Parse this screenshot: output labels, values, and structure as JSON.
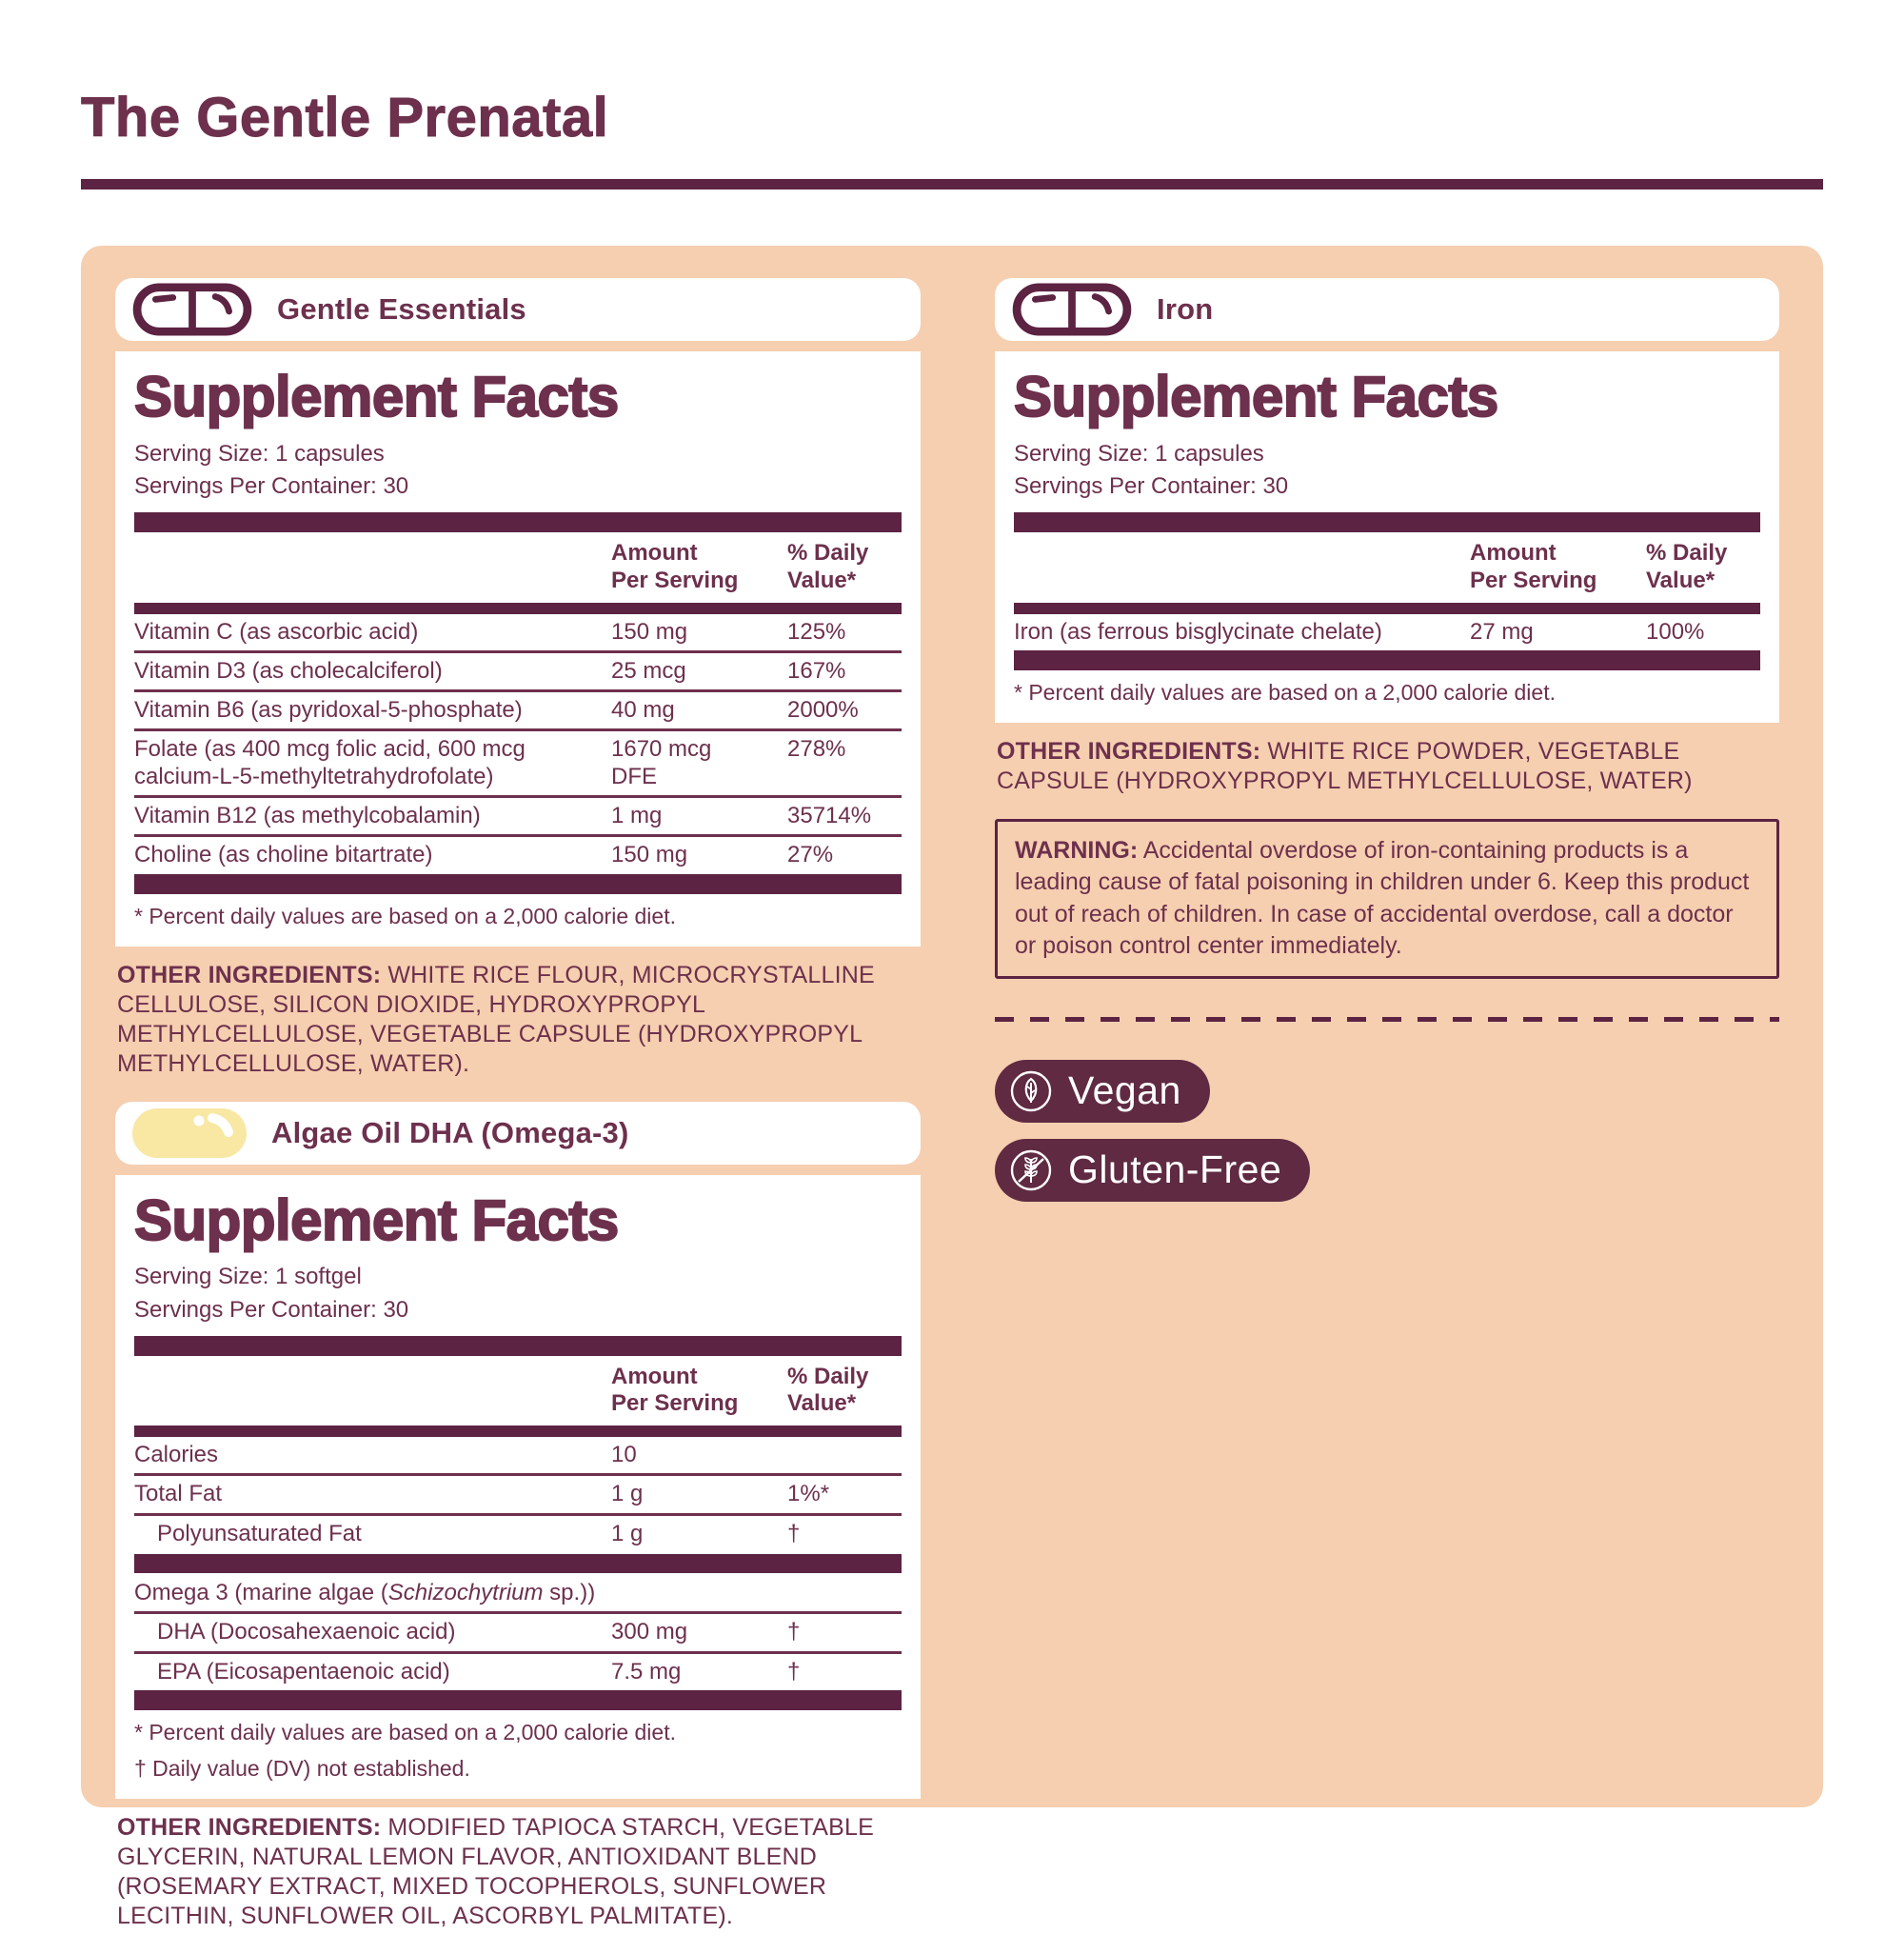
{
  "title": "The Gentle Prenatal",
  "colors": {
    "maroon_text": "#6d304d",
    "maroon_dark": "#5c2342",
    "peach_background": "#f5cfb0",
    "card_white": "#ffffff",
    "softgel_yellow": "#f8e8a4",
    "badge_background": "#5f2a42",
    "badge_text": "#ffffff"
  },
  "sections": {
    "gentle_essentials": {
      "header": {
        "label": "Gentle Essentials",
        "icon": "capsule-icon"
      },
      "facts": {
        "title": "Supplement Facts",
        "serving_size": "Serving Size: 1 capsules",
        "servings_per_container": "Servings Per Container: 30",
        "amount_header_line1": "Amount",
        "amount_header_line2": "Per Serving",
        "dv_header_line1": "% Daily",
        "dv_header_line2": "Value*",
        "rows": [
          {
            "name": "Vitamin C (as ascorbic acid)",
            "amount": "150 mg",
            "dv": "125%"
          },
          {
            "name": "Vitamin D3 (as cholecalciferol)",
            "amount": "25 mcg",
            "dv": "167%"
          },
          {
            "name": "Vitamin B6 (as pyridoxal-5-phosphate)",
            "amount": "40 mg",
            "dv": "2000%"
          },
          {
            "name": "Folate (as 400 mcg folic acid, 600 mcg calcium-L-5-methyltetrahydrofolate)",
            "amount": "1670 mcg\nDFE",
            "dv": "278%"
          },
          {
            "name": "Vitamin B12 (as methylcobalamin)",
            "amount": "1 mg",
            "dv": "35714%"
          },
          {
            "name": "Choline (as choline bitartrate)",
            "amount": "150 mg",
            "dv": "27%"
          }
        ],
        "footnotes": [
          "* Percent daily values are based on a 2,000 calorie diet."
        ]
      },
      "other_ingredients": {
        "label": "OTHER INGREDIENTS:",
        "text": " WHITE RICE FLOUR, MICROCRYSTALLINE CELLULOSE, SILICON DIOXIDE, HYDROXYPROPYL METHYLCELLULOSE, VEGETABLE CAPSULE (HYDROXYPROPYL METHYLCELLULOSE, WATER)."
      }
    },
    "algae_oil": {
      "header": {
        "label": "Algae Oil DHA (Omega-3)",
        "icon": "softgel-icon"
      },
      "facts": {
        "title": "Supplement Facts",
        "serving_size": "Serving Size: 1 softgel",
        "servings_per_container": "Servings Per Container: 30",
        "amount_header_line1": "Amount",
        "amount_header_line2": "Per Serving",
        "dv_header_line1": "% Daily",
        "dv_header_line2": "Value*",
        "rows": [
          {
            "name": "Calories",
            "amount": "10",
            "dv": ""
          },
          {
            "name": "Total Fat",
            "amount": "1 g",
            "dv": "1%*"
          },
          {
            "name": "Polyunsaturated Fat",
            "amount": "1 g",
            "dv": "†",
            "indent": true
          },
          {
            "bar": true
          },
          {
            "name_parts": [
              {
                "t": "Omega 3 (marine algae ("
              },
              {
                "t": "Schizochytrium",
                "i": true
              },
              {
                "t": " sp.))"
              }
            ],
            "amount": "",
            "dv": ""
          },
          {
            "name": "DHA (Docosahexaenoic acid)",
            "amount": "300 mg",
            "dv": "†",
            "indent": true
          },
          {
            "name": "EPA (Eicosapentaenoic acid)",
            "amount": "7.5 mg",
            "dv": "†",
            "indent": true
          }
        ],
        "footnotes": [
          "* Percent daily values are based on a 2,000 calorie diet.",
          "† Daily value (DV) not established."
        ]
      },
      "other_ingredients": {
        "label": "OTHER INGREDIENTS:",
        "text": " MODIFIED TAPIOCA STARCH, VEGETABLE GLYCERIN, NATURAL LEMON FLAVOR, ANTIOXIDANT BLEND (ROSEMARY EXTRACT, MIXED TOCOPHEROLS, SUNFLOWER LECITHIN, SUNFLOWER OIL, ASCORBYL PALMITATE)."
      }
    },
    "iron": {
      "header": {
        "label": "Iron",
        "icon": "capsule-icon"
      },
      "facts": {
        "title": "Supplement Facts",
        "serving_size": "Serving Size: 1 capsules",
        "servings_per_container": "Servings Per Container: 30",
        "amount_header_line1": "Amount",
        "amount_header_line2": "Per Serving",
        "dv_header_line1": "% Daily",
        "dv_header_line2": "Value*",
        "rows": [
          {
            "name": "Iron (as ferrous bisglycinate chelate)",
            "amount": "27 mg",
            "dv": "100%"
          }
        ],
        "footnotes": [
          "* Percent daily values are based on a 2,000 calorie diet."
        ]
      },
      "other_ingredients": {
        "label": "OTHER INGREDIENTS:",
        "text": " WHITE RICE POWDER, VEGETABLE CAPSULE (HYDROXYPROPYL METHYLCELLULOSE, WATER)"
      },
      "warning": {
        "label": "WARNING:",
        "text": " Accidental overdose of iron-containing products is a leading cause of fatal poisoning in children under 6. Keep this product out of reach of children. In case of accidental overdose, call a doctor or poison control center immediately."
      }
    },
    "badges": [
      {
        "label": "Vegan",
        "icon": "leaf-icon"
      },
      {
        "label": "Gluten-Free",
        "icon": "wheat-crossed-icon"
      }
    ]
  }
}
